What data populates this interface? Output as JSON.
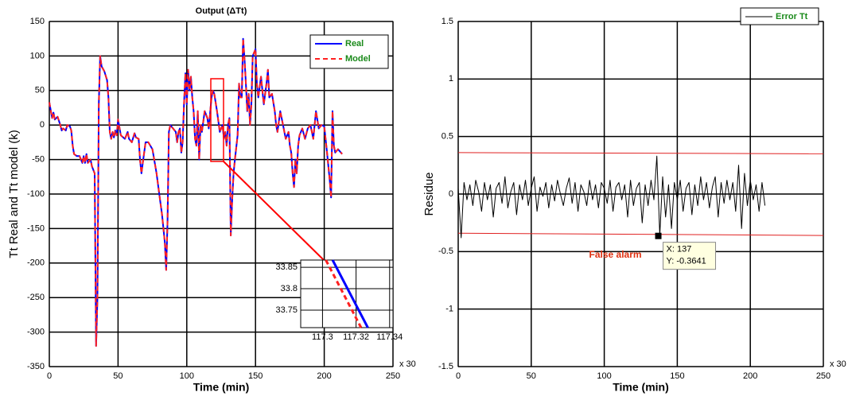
{
  "chart_data": [
    {
      "type": "line",
      "title": "Output  (ΔTt)",
      "xlabel": "Time (min)",
      "ylabel": "Tt Real and Tt model (k)",
      "x_multiplier": "x 30",
      "xlim": [
        0,
        250
      ],
      "ylim": [
        -350,
        150
      ],
      "xticks": [
        0,
        50,
        100,
        150,
        200,
        250
      ],
      "yticks": [
        150,
        100,
        50,
        0,
        -50,
        -100,
        -150,
        -200,
        -250,
        -300,
        -350
      ],
      "grid": true,
      "legend": "upper right",
      "legend_text_color": "#1a8a1a",
      "x": [
        0,
        2,
        3,
        4,
        6,
        8,
        9,
        10,
        12,
        13,
        15,
        16,
        17,
        18,
        20,
        22,
        24,
        25,
        26,
        27,
        28,
        30,
        31,
        33,
        34,
        35,
        36,
        37,
        38,
        40,
        42,
        43,
        44,
        45,
        46,
        47,
        48,
        49,
        50,
        52,
        55,
        57,
        58,
        60,
        62,
        63,
        65,
        66,
        67,
        68,
        70,
        72,
        75,
        78,
        80,
        82,
        84,
        85,
        86,
        87,
        88,
        90,
        92,
        93,
        94,
        95,
        96,
        97,
        98,
        99,
        100,
        101,
        102,
        103,
        104,
        105,
        106,
        107,
        108,
        109,
        110,
        111,
        113,
        115,
        116,
        118,
        119,
        120,
        122,
        124,
        126,
        127,
        128,
        129,
        130,
        131,
        132,
        133,
        134,
        135,
        137,
        138,
        139,
        140,
        141,
        142,
        143,
        144,
        145,
        146,
        147,
        148,
        150,
        151,
        152,
        154,
        156,
        158,
        159,
        160,
        162,
        164,
        165,
        166,
        168,
        170,
        172,
        174,
        175,
        176,
        177,
        178,
        179,
        180,
        181,
        182,
        184,
        186,
        188,
        190,
        192,
        194,
        196,
        198,
        200,
        202,
        204,
        205,
        206,
        207,
        208,
        210,
        213
      ],
      "series": [
        {
          "name": "Real",
          "color": "#0000ff",
          "linestyle": "solid",
          "values": [
            33,
            10,
            18,
            8,
            12,
            0,
            -8,
            -5,
            -8,
            0,
            -2,
            -8,
            -30,
            -42,
            -45,
            -45,
            -55,
            -45,
            -55,
            -42,
            -55,
            -50,
            -60,
            -70,
            -320,
            -250,
            30,
            100,
            85,
            78,
            65,
            40,
            -10,
            -20,
            -10,
            -18,
            -8,
            -15,
            8,
            -15,
            -20,
            -10,
            -20,
            -25,
            -12,
            -18,
            -20,
            -50,
            -70,
            -55,
            -25,
            -25,
            -35,
            -70,
            -100,
            -130,
            -170,
            -210,
            -140,
            -10,
            0,
            -5,
            -10,
            -25,
            -10,
            -5,
            -40,
            -25,
            30,
            75,
            30,
            80,
            50,
            70,
            40,
            20,
            -20,
            -30,
            20,
            -50,
            0,
            -10,
            20,
            10,
            -5,
            40,
            50,
            45,
            20,
            -10,
            0,
            -20,
            -10,
            -30,
            0,
            10,
            -160,
            -110,
            -70,
            -50,
            -15,
            60,
            40,
            40,
            125,
            95,
            60,
            20,
            45,
            0,
            30,
            100,
            110,
            60,
            40,
            70,
            30,
            60,
            80,
            40,
            45,
            20,
            0,
            -10,
            20,
            0,
            -20,
            -10,
            -30,
            -40,
            -70,
            -90,
            -50,
            -70,
            -30,
            -15,
            -5,
            -20,
            -5,
            0,
            -20,
            20,
            -5,
            0,
            -2,
            -40,
            -80,
            -105,
            20,
            -30,
            -40,
            -35,
            -42
          ]
        },
        {
          "name": "Model",
          "color": "#ff2020",
          "linestyle": "dashed",
          "values": [
            33,
            10,
            18,
            8,
            12,
            0,
            -8,
            -5,
            -8,
            0,
            -2,
            -8,
            -30,
            -42,
            -45,
            -45,
            -55,
            -45,
            -55,
            -42,
            -55,
            -50,
            -60,
            -70,
            -320,
            -250,
            30,
            100,
            85,
            78,
            65,
            40,
            -10,
            -20,
            -10,
            -18,
            -8,
            -15,
            8,
            -15,
            -20,
            -10,
            -20,
            -25,
            -12,
            -18,
            -20,
            -50,
            -70,
            -55,
            -25,
            -25,
            -35,
            -70,
            -100,
            -130,
            -170,
            -210,
            -140,
            -10,
            0,
            -5,
            -10,
            -25,
            -10,
            -5,
            -40,
            -25,
            30,
            75,
            30,
            80,
            50,
            70,
            40,
            20,
            -20,
            -30,
            20,
            -50,
            0,
            -10,
            20,
            10,
            -5,
            40,
            50,
            45,
            20,
            -10,
            0,
            -20,
            -10,
            -30,
            0,
            10,
            -160,
            -110,
            -70,
            -50,
            -15,
            60,
            40,
            40,
            125,
            95,
            60,
            20,
            45,
            0,
            30,
            100,
            110,
            60,
            40,
            70,
            30,
            60,
            80,
            40,
            45,
            20,
            0,
            -10,
            20,
            0,
            -20,
            -10,
            -30,
            -40,
            -70,
            -90,
            -50,
            -70,
            -30,
            -15,
            -5,
            -20,
            -5,
            0,
            -20,
            20,
            -5,
            0,
            -2,
            -40,
            -80,
            -105,
            20,
            -30,
            -40,
            -35,
            -42
          ]
        }
      ],
      "inset": {
        "xlim": [
          117.287,
          117.342
        ],
        "ylim": [
          33.709,
          33.867
        ],
        "xticks": [
          117.3,
          117.32,
          117.34
        ],
        "yticks": [
          33.85,
          33.8,
          33.75
        ],
        "series": [
          {
            "x": [
              117.306,
              117.327
            ],
            "values": [
              33.867,
              33.709
            ]
          },
          {
            "x": [
              117.302,
              117.323
            ],
            "values": [
              33.867,
              33.709
            ]
          }
        ]
      }
    },
    {
      "type": "line",
      "xlabel": "Time (min)",
      "ylabel": "Residue",
      "x_multiplier": "x 30",
      "xlim": [
        0,
        250
      ],
      "ylim": [
        -1.5,
        1.5
      ],
      "xticks": [
        0,
        50,
        100,
        150,
        200,
        250
      ],
      "yticks": [
        1.5,
        1,
        0.5,
        0,
        -0.5,
        -1,
        -1.5
      ],
      "grid": true,
      "legend": "upper right",
      "legend_text_color": "#1a8a1a",
      "x": [
        0,
        2,
        4,
        6,
        8,
        10,
        12,
        14,
        16,
        18,
        20,
        22,
        24,
        26,
        28,
        30,
        32,
        34,
        36,
        38,
        40,
        42,
        44,
        46,
        48,
        50,
        52,
        54,
        56,
        58,
        60,
        62,
        64,
        66,
        68,
        70,
        72,
        74,
        76,
        78,
        80,
        82,
        84,
        86,
        88,
        90,
        92,
        94,
        96,
        98,
        100,
        102,
        104,
        106,
        108,
        110,
        112,
        114,
        116,
        118,
        120,
        122,
        124,
        126,
        128,
        130,
        132,
        134,
        136,
        138,
        140,
        142,
        144,
        146,
        148,
        150,
        152,
        154,
        156,
        158,
        160,
        162,
        164,
        166,
        168,
        170,
        172,
        174,
        176,
        178,
        180,
        182,
        184,
        186,
        188,
        190,
        192,
        194,
        196,
        198,
        200,
        202,
        204,
        206,
        208,
        210
      ],
      "series": [
        {
          "name": "Error Tt",
          "color": "#000000",
          "linestyle": "solid",
          "values": [
            0.05,
            -0.38,
            0.1,
            -0.05,
            0.08,
            -0.1,
            0.12,
            0.02,
            -0.15,
            0.1,
            -0.05,
            0.08,
            -0.2,
            0.05,
            0.1,
            -0.08,
            0.15,
            -0.12,
            0.02,
            0.1,
            -0.18,
            0.08,
            -0.05,
            0.12,
            -0.1,
            0.05,
            0.15,
            -0.15,
            0.06,
            -0.02,
            0.1,
            -0.12,
            0.08,
            -0.06,
            0.12,
            0.0,
            -0.1,
            0.05,
            0.14,
            -0.08,
            0.1,
            -0.15,
            0.08,
            0.02,
            -0.1,
            0.12,
            -0.05,
            0.08,
            -0.12,
            0.1,
            0.05,
            -0.08,
            0.12,
            -0.15,
            0.06,
            0.1,
            -0.05,
            0.08,
            -0.2,
            0.12,
            -0.1,
            0.05,
            0.1,
            -0.25,
            0.08,
            -0.1,
            0.12,
            -0.05,
            0.33,
            -0.36,
            0.15,
            -0.2,
            0.08,
            -0.3,
            0.1,
            -0.05,
            0.12,
            -0.15,
            0.05,
            0.1,
            -0.18,
            0.08,
            -0.1,
            0.15,
            -0.05,
            0.1,
            -0.12,
            0.06,
            0.15,
            -0.2,
            0.1,
            -0.08,
            0.12,
            -0.05,
            0.1,
            -0.15,
            0.25,
            -0.3,
            0.18,
            -0.1,
            0.12,
            -0.05,
            0.08,
            -0.15,
            0.1,
            -0.1
          ]
        }
      ],
      "threshold_lines": {
        "color": "#e02020",
        "x": [
          0,
          250
        ],
        "lines": [
          [
            0.36,
            0.35
          ],
          [
            -0.34,
            -0.36
          ]
        ]
      },
      "annotation": "False alarm",
      "datatip": {
        "x": 137,
        "y": -0.3641,
        "labels": [
          "X: 137",
          "Y: -0.3641"
        ]
      }
    }
  ]
}
